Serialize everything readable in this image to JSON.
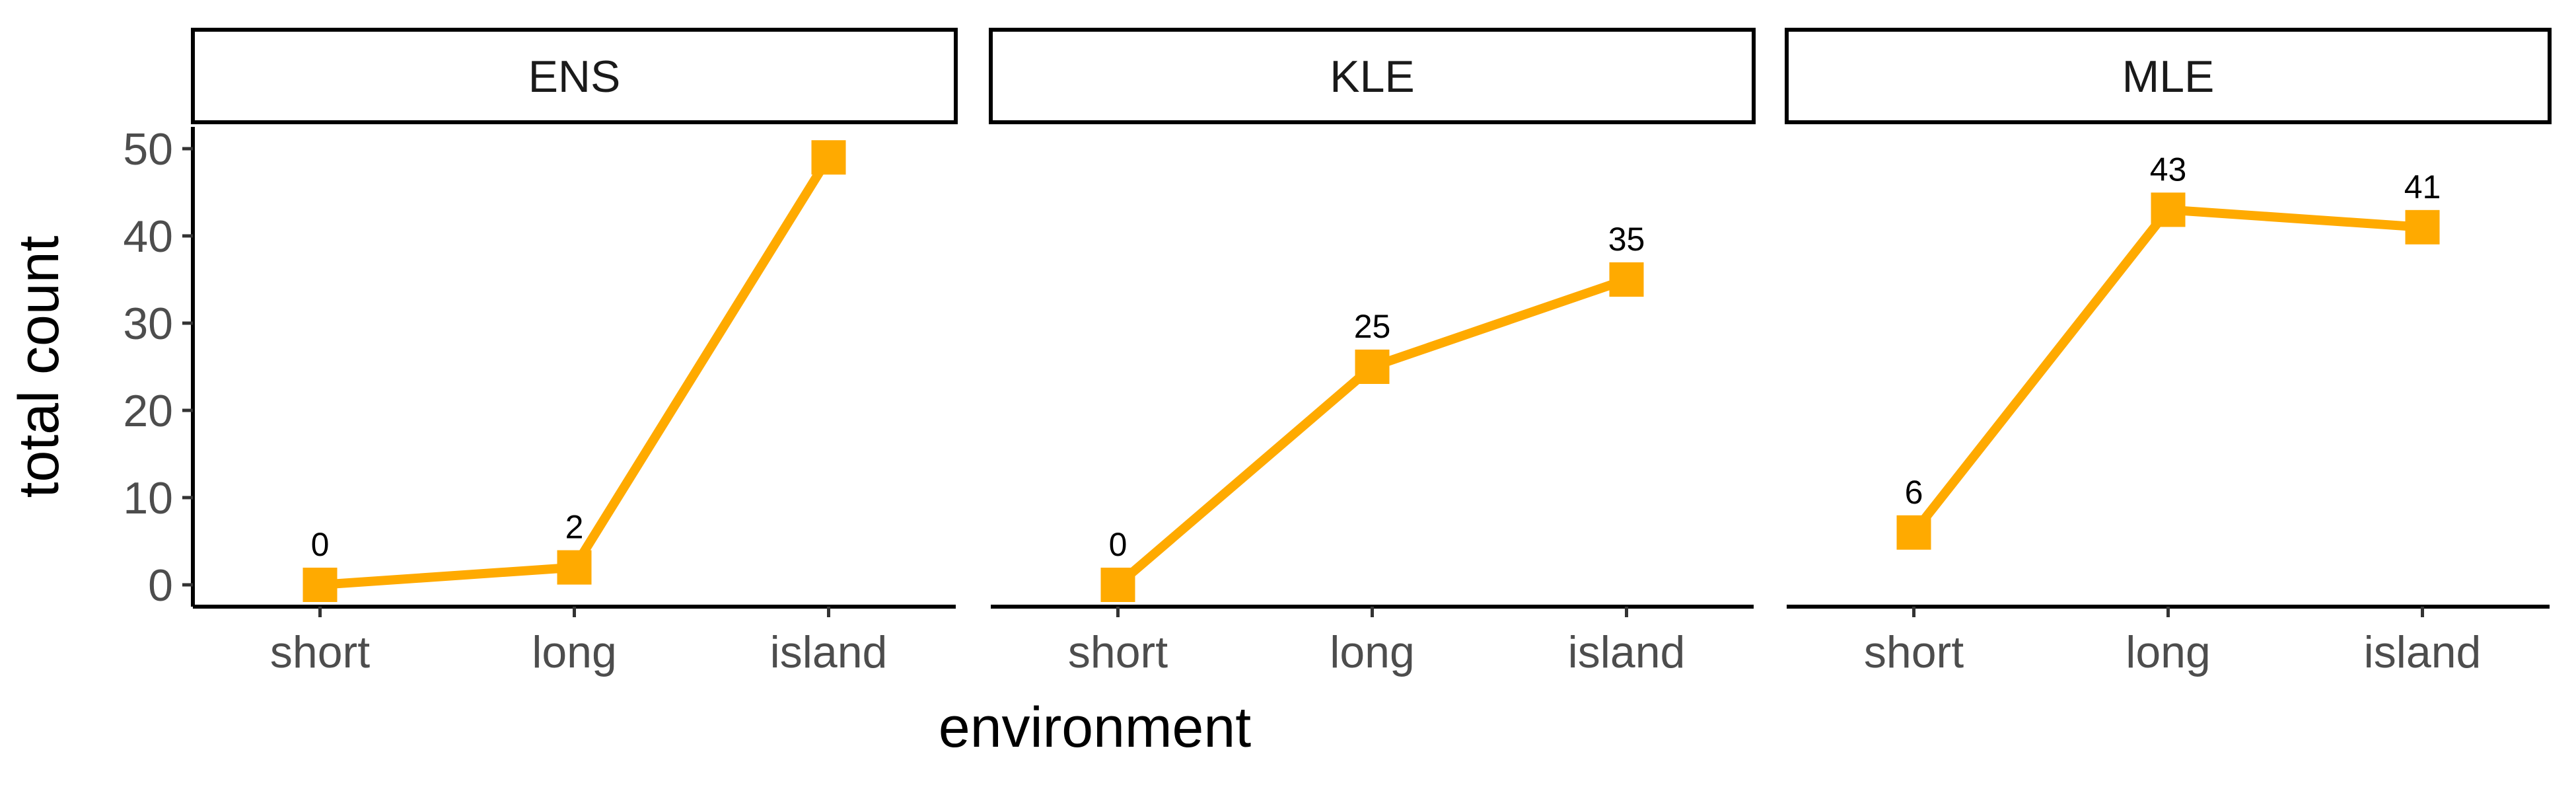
{
  "chart_data": {
    "type": "line",
    "xlabel": "environment",
    "ylabel": "total count",
    "ylim": [
      -2.5,
      51
    ],
    "yticks": [
      0,
      10,
      20,
      30,
      40,
      50
    ],
    "categories": [
      "short",
      "long",
      "island"
    ],
    "color": "#FFAA00",
    "grid": false,
    "legend": "none",
    "panels": [
      {
        "name": "ENS",
        "values": [
          0,
          2,
          49
        ],
        "labels": [
          "0",
          "2",
          ""
        ]
      },
      {
        "name": "KLE",
        "values": [
          0,
          25,
          35
        ],
        "labels": [
          "0",
          "25",
          "35"
        ]
      },
      {
        "name": "MLE",
        "values": [
          6,
          43,
          41
        ],
        "labels": [
          "6",
          "43",
          "41"
        ]
      }
    ]
  }
}
